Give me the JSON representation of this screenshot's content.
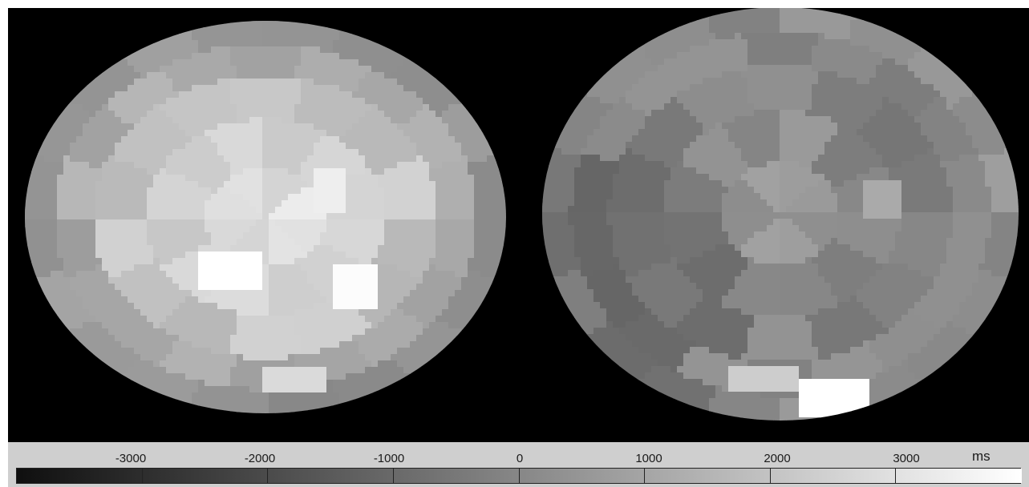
{
  "colorbar": {
    "unit": "ms",
    "ticks": [
      -3000,
      -2000,
      -1000,
      0,
      1000,
      2000,
      3000
    ],
    "tick_labels": [
      "-3000",
      "-2000",
      "-1000",
      "0",
      "1000",
      "2000",
      "3000"
    ],
    "range": [
      -4000,
      4000
    ],
    "gradient": [
      "#0f0f0f",
      "#ffffff"
    ]
  },
  "colors": {
    "background": "#000000",
    "panel": "#cfcfcf"
  }
}
